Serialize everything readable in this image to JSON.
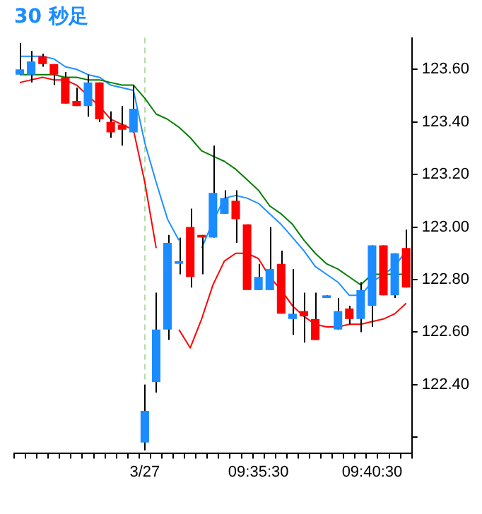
{
  "chart_data": {
    "type": "candlestick",
    "title": "30 秒足",
    "categories": [
      null,
      null,
      null,
      null,
      null,
      null,
      null,
      null,
      null,
      null,
      null,
      "3/27",
      null,
      null,
      null,
      null,
      null,
      null,
      null,
      null,
      null,
      "09:35:30",
      null,
      null,
      null,
      null,
      null,
      null,
      null,
      null,
      null,
      "09:40:30",
      null,
      null,
      null
    ],
    "ohlc": [
      [
        123.58,
        123.7,
        123.58,
        123.6
      ],
      [
        123.58,
        123.67,
        123.55,
        123.63
      ],
      [
        123.65,
        123.66,
        123.61,
        123.62
      ],
      [
        123.62,
        123.62,
        123.54,
        123.58
      ],
      [
        123.57,
        123.59,
        123.47,
        123.47
      ],
      [
        123.48,
        123.53,
        123.46,
        123.46
      ],
      [
        123.46,
        123.58,
        123.42,
        123.55
      ],
      [
        123.55,
        123.55,
        123.4,
        123.41
      ],
      [
        123.4,
        123.44,
        123.34,
        123.36
      ],
      [
        123.39,
        123.46,
        123.31,
        123.37
      ],
      [
        123.36,
        123.54,
        123.36,
        123.45
      ],
      [
        122.18,
        122.4,
        122.15,
        122.3
      ],
      [
        122.41,
        122.75,
        122.37,
        122.61
      ],
      [
        122.61,
        122.97,
        122.57,
        122.94
      ],
      [
        122.86,
        122.96,
        122.82,
        122.87
      ],
      [
        123.0,
        123.07,
        122.77,
        122.81
      ],
      [
        122.97,
        122.97,
        122.82,
        122.96
      ],
      [
        122.96,
        123.31,
        122.96,
        123.13
      ],
      [
        123.05,
        123.14,
        123.05,
        123.11
      ],
      [
        123.1,
        123.14,
        122.94,
        123.03
      ],
      [
        123.01,
        123.01,
        122.76,
        122.76
      ],
      [
        122.76,
        122.86,
        122.76,
        122.81
      ],
      [
        122.76,
        123.0,
        122.76,
        122.84
      ],
      [
        122.86,
        122.91,
        122.67,
        122.67
      ],
      [
        122.65,
        122.84,
        122.59,
        122.67
      ],
      [
        122.68,
        122.75,
        122.56,
        122.66
      ],
      [
        122.65,
        122.75,
        122.57,
        122.57
      ],
      [
        122.73,
        122.74,
        122.73,
        122.74
      ],
      [
        122.61,
        122.73,
        122.61,
        122.68
      ],
      [
        122.69,
        122.7,
        122.63,
        122.65
      ],
      [
        122.65,
        122.79,
        122.6,
        122.76
      ],
      [
        122.7,
        122.93,
        122.62,
        122.93
      ],
      [
        122.93,
        122.93,
        122.74,
        122.74
      ],
      [
        122.74,
        122.9,
        122.73,
        122.9
      ],
      [
        122.92,
        122.99,
        122.77,
        122.77
      ]
    ],
    "colors": [
      "#1a8cff",
      "#1a8cff",
      "#ff0000",
      "#ff0000",
      "#ff0000",
      "#ff0000",
      "#1a8cff",
      "#ff0000",
      "#ff0000",
      "#ff0000",
      "#1a8cff",
      "#1a8cff",
      "#1a8cff",
      "#1a8cff",
      "#1a8cff",
      "#ff0000",
      "#ff0000",
      "#1a8cff",
      "#1a8cff",
      "#ff0000",
      "#ff0000",
      "#1a8cff",
      "#1a8cff",
      "#ff0000",
      "#1a8cff",
      "#ff0000",
      "#ff0000",
      "#1a8cff",
      "#1a8cff",
      "#ff0000",
      "#1a8cff",
      "#1a8cff",
      "#ff0000",
      "#1a8cff",
      "#ff0000"
    ],
    "series": [
      {
        "type": "line",
        "color": "#008000",
        "values": [
          123.58,
          123.58,
          123.58,
          123.58,
          123.57,
          123.57,
          123.56,
          123.56,
          123.55,
          123.54,
          123.54,
          123.49,
          123.43,
          123.41,
          123.38,
          123.34,
          123.29,
          123.27,
          123.25,
          123.22,
          123.18,
          123.14,
          123.08,
          123.05,
          123.01,
          122.95,
          122.9,
          122.86,
          122.84,
          122.81,
          122.78,
          122.82,
          122.82,
          122.82,
          122.82
        ]
      },
      {
        "type": "line",
        "color": "#1e90ff",
        "values": [
          123.65,
          123.65,
          123.65,
          123.64,
          123.61,
          123.6,
          123.58,
          123.57,
          123.54,
          123.53,
          123.52,
          123.32,
          123.17,
          123.03,
          122.95,
          null,
          122.92,
          123.02,
          123.11,
          123.12,
          123.11,
          123.09,
          123.05,
          123.01,
          122.96,
          122.91,
          122.85,
          122.82,
          122.79,
          122.74,
          122.74,
          122.79,
          122.82,
          122.85,
          122.91
        ]
      },
      {
        "type": "line",
        "color": "#ff0000",
        "values": [
          123.55,
          123.56,
          123.57,
          123.56,
          123.56,
          123.54,
          123.5,
          123.46,
          123.41,
          123.39,
          123.37,
          123.17,
          122.92,
          null,
          122.61,
          122.54,
          122.65,
          122.78,
          122.87,
          122.9,
          122.9,
          122.88,
          122.81,
          122.76,
          122.7,
          122.66,
          122.63,
          122.62,
          122.62,
          122.63,
          122.63,
          122.64,
          122.65,
          122.67,
          122.71
        ]
      }
    ],
    "ylim": [
      122.14,
      123.72
    ],
    "yticks": [
      {
        "value": 122.2,
        "label": null
      },
      {
        "value": 122.4,
        "label": "122.40"
      },
      {
        "value": 122.6,
        "label": "122.60"
      },
      {
        "value": 122.8,
        "label": "122.80"
      },
      {
        "value": 123,
        "label": "123.00"
      },
      {
        "value": 123.2,
        "label": "123.20"
      },
      {
        "value": 123.4,
        "label": "123.40"
      },
      {
        "value": 123.6,
        "label": "123.60"
      }
    ],
    "ref_lines": [
      {
        "axis": "x",
        "value": "3/27",
        "color": "#b4dca8",
        "line_style": "dashed"
      }
    ],
    "grid": false,
    "legend": false,
    "marker": "none"
  }
}
